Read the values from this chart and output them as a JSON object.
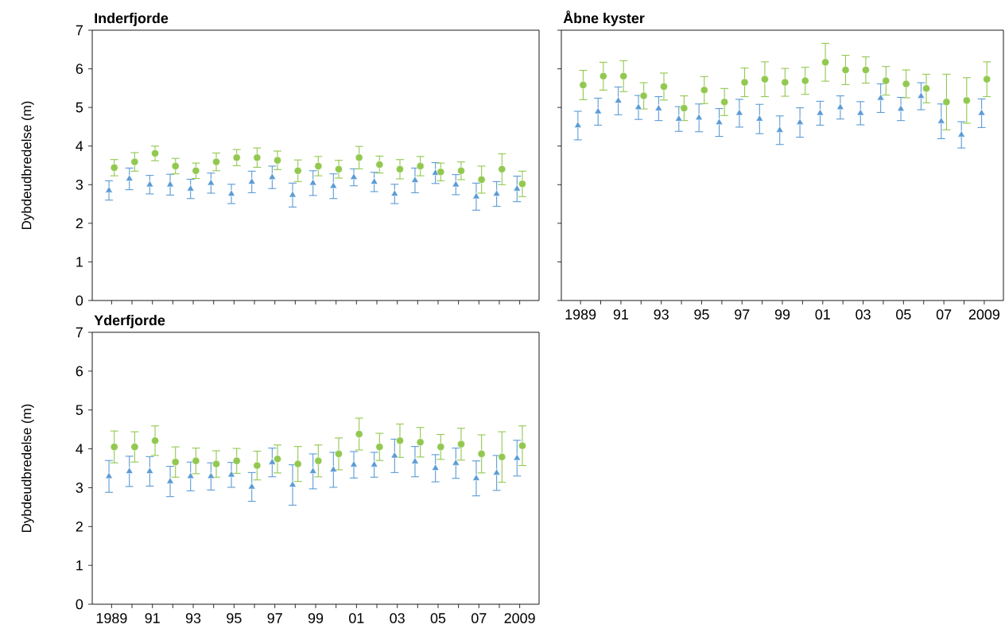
{
  "chart_data": [
    {
      "type": "scatter",
      "title": "Inderfjorde",
      "ylabel": "Dybdeudbredelse (m)",
      "tick_labels": "y",
      "categories": [
        "1989",
        null,
        "91",
        null,
        "93",
        null,
        "95",
        null,
        "97",
        null,
        "99",
        null,
        "01",
        null,
        "03",
        null,
        "05",
        null,
        "07",
        null,
        "2009"
      ],
      "ylim": [
        0,
        7
      ],
      "yticks": [
        0,
        1,
        2,
        3,
        4,
        5,
        6,
        7
      ],
      "series": [
        {
          "color": "#5b9bd5",
          "marker": "triangle",
          "values": [
            2.85,
            3.15,
            3.0,
            3.0,
            2.89,
            3.04,
            2.76,
            3.07,
            3.19,
            2.73,
            3.04,
            2.96,
            3.19,
            3.07,
            2.76,
            3.11,
            3.3,
            3.0,
            2.69,
            2.76,
            2.89
          ],
          "errors": [
            0.25,
            0.28,
            0.24,
            0.27,
            0.25,
            0.26,
            0.25,
            0.28,
            0.29,
            0.31,
            0.32,
            0.32,
            0.22,
            0.25,
            0.25,
            0.32,
            0.27,
            0.26,
            0.35,
            0.32,
            0.33
          ]
        },
        {
          "color": "#92c84f",
          "marker": "circle",
          "values": [
            3.44,
            3.59,
            3.81,
            3.48,
            3.36,
            3.59,
            3.7,
            3.7,
            3.63,
            3.36,
            3.48,
            3.4,
            3.7,
            3.52,
            3.4,
            3.48,
            3.33,
            3.36,
            3.13,
            3.4,
            3.02
          ],
          "errors": [
            0.21,
            0.24,
            0.19,
            0.2,
            0.2,
            0.23,
            0.21,
            0.25,
            0.24,
            0.28,
            0.25,
            0.23,
            0.29,
            0.22,
            0.25,
            0.25,
            0.23,
            0.23,
            0.35,
            0.4,
            0.33
          ]
        }
      ]
    },
    {
      "type": "scatter",
      "title": "Åbne kyster",
      "tick_labels": "x",
      "categories": [
        "1989",
        null,
        "91",
        null,
        "93",
        null,
        "95",
        null,
        "97",
        null,
        "99",
        null,
        "01",
        null,
        "03",
        null,
        "05",
        null,
        "07",
        null,
        "2009"
      ],
      "ylim": [
        0,
        7
      ],
      "yticks": [
        0,
        1,
        2,
        3,
        4,
        5,
        6,
        7
      ],
      "series": [
        {
          "color": "#5b9bd5",
          "marker": "triangle",
          "values": [
            4.53,
            4.89,
            5.17,
            5.0,
            4.97,
            4.7,
            4.73,
            4.61,
            4.85,
            4.7,
            4.41,
            4.61,
            4.85,
            5.0,
            4.85,
            5.24,
            4.96,
            5.29,
            4.64,
            4.29,
            4.85
          ],
          "errors": [
            0.37,
            0.35,
            0.36,
            0.31,
            0.31,
            0.32,
            0.36,
            0.36,
            0.36,
            0.38,
            0.37,
            0.38,
            0.31,
            0.3,
            0.3,
            0.37,
            0.3,
            0.35,
            0.45,
            0.34,
            0.37
          ]
        },
        {
          "color": "#92c84f",
          "marker": "circle",
          "values": [
            5.58,
            5.81,
            5.81,
            5.3,
            5.54,
            4.98,
            5.45,
            5.14,
            5.65,
            5.73,
            5.65,
            5.69,
            6.17,
            5.97,
            5.97,
            5.69,
            5.61,
            5.49,
            5.14,
            5.18,
            5.73
          ],
          "errors": [
            0.38,
            0.36,
            0.4,
            0.34,
            0.35,
            0.32,
            0.35,
            0.35,
            0.37,
            0.45,
            0.36,
            0.35,
            0.49,
            0.38,
            0.34,
            0.37,
            0.36,
            0.37,
            0.72,
            0.59,
            0.45
          ]
        }
      ]
    },
    {
      "type": "scatter",
      "title": "Yderfjorde",
      "ylabel": "Dybdeudbredelse (m)",
      "categories": [
        "1989",
        null,
        "91",
        null,
        "93",
        null,
        "95",
        null,
        "97",
        null,
        "99",
        null,
        "01",
        null,
        "03",
        null,
        "05",
        null,
        "07",
        null,
        "2009"
      ],
      "ylim": [
        0,
        7
      ],
      "yticks": [
        0,
        1,
        2,
        3,
        4,
        5,
        6,
        7
      ],
      "series": [
        {
          "color": "#5b9bd5",
          "marker": "triangle",
          "values": [
            3.29,
            3.42,
            3.42,
            3.16,
            3.29,
            3.29,
            3.33,
            3.02,
            3.65,
            3.07,
            3.42,
            3.46,
            3.59,
            3.59,
            3.82,
            3.67,
            3.5,
            3.63,
            3.24,
            3.38,
            3.76
          ],
          "errors": [
            0.41,
            0.39,
            0.38,
            0.39,
            0.37,
            0.35,
            0.32,
            0.37,
            0.37,
            0.52,
            0.45,
            0.45,
            0.34,
            0.32,
            0.43,
            0.39,
            0.35,
            0.39,
            0.45,
            0.45,
            0.46
          ]
        },
        {
          "color": "#92c84f",
          "marker": "circle",
          "values": [
            4.05,
            4.05,
            4.21,
            3.66,
            3.69,
            3.61,
            3.69,
            3.57,
            3.74,
            3.61,
            3.69,
            3.87,
            4.38,
            4.05,
            4.21,
            4.17,
            4.05,
            4.12,
            3.87,
            3.79,
            4.08
          ],
          "errors": [
            0.41,
            0.39,
            0.38,
            0.39,
            0.33,
            0.34,
            0.32,
            0.37,
            0.36,
            0.45,
            0.41,
            0.41,
            0.41,
            0.35,
            0.43,
            0.38,
            0.32,
            0.41,
            0.49,
            0.65,
            0.51
          ]
        }
      ]
    }
  ]
}
